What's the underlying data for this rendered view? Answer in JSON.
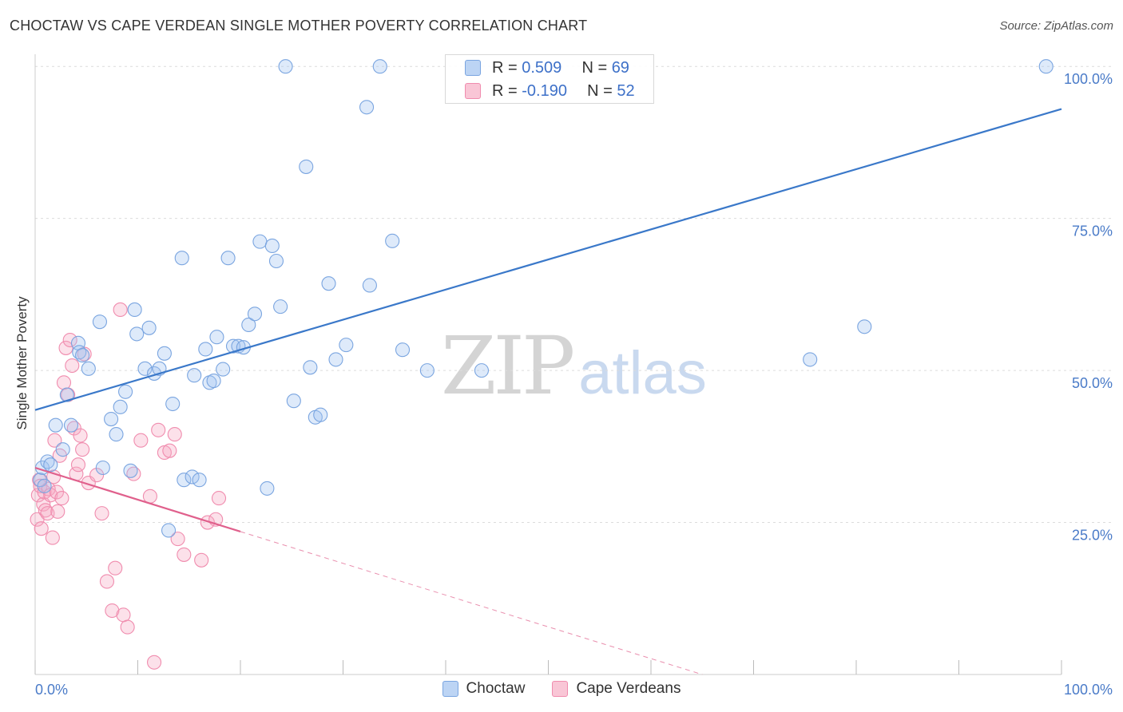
{
  "title": "CHOCTAW VS CAPE VERDEAN SINGLE MOTHER POVERTY CORRELATION CHART",
  "source": "Source: ZipAtlas.com",
  "watermark": {
    "zip": "ZIP",
    "atlas": "atlas"
  },
  "legend": {
    "rows": [
      {
        "r_label": "R =",
        "r_value": "0.509",
        "n_label": "N =",
        "n_value": "69"
      },
      {
        "r_label": "R =",
        "r_value": "-0.190",
        "n_label": "N =",
        "n_value": "52"
      }
    ]
  },
  "chart_data": {
    "type": "scatter",
    "title": "CHOCTAW VS CAPE VERDEAN SINGLE MOTHER POVERTY CORRELATION CHART",
    "xlabel": "",
    "ylabel": "Single Mother Poverty",
    "xlim": [
      0,
      100
    ],
    "ylim": [
      0,
      102
    ],
    "x_tick_labels": [
      "0.0%",
      "100.0%"
    ],
    "y_ticks": [
      25,
      50,
      75,
      100
    ],
    "y_tick_labels": [
      "25.0%",
      "50.0%",
      "75.0%",
      "100.0%"
    ],
    "grid": true,
    "legend_position": "bottom",
    "colors": {
      "choctaw": "#7aa5e0",
      "choctaw_line": "#3a78c9",
      "cape": "#f08cae",
      "cape_line": "#e0608c"
    },
    "series": [
      {
        "name": "Choctaw",
        "r": 0.509,
        "n": 69,
        "trend": {
          "x": [
            0,
            100
          ],
          "y": [
            43.5,
            93.0
          ]
        },
        "points": [
          [
            0.5,
            32
          ],
          [
            0.7,
            34
          ],
          [
            0.9,
            31
          ],
          [
            1.2,
            35
          ],
          [
            1.5,
            34.5
          ],
          [
            2.0,
            41
          ],
          [
            2.7,
            37
          ],
          [
            3.1,
            46
          ],
          [
            3.5,
            41
          ],
          [
            4.2,
            54.5
          ],
          [
            4.3,
            53
          ],
          [
            5.2,
            50.3
          ],
          [
            4.6,
            52.5
          ],
          [
            6.3,
            58
          ],
          [
            6.6,
            34
          ],
          [
            7.4,
            42
          ],
          [
            7.9,
            39.5
          ],
          [
            8.3,
            44
          ],
          [
            8.8,
            46.5
          ],
          [
            9.3,
            33.5
          ],
          [
            9.7,
            60
          ],
          [
            9.9,
            56
          ],
          [
            10.7,
            50.3
          ],
          [
            11.1,
            57
          ],
          [
            11.6,
            49.5
          ],
          [
            12.1,
            50.3
          ],
          [
            12.6,
            52.8
          ],
          [
            13.0,
            23.7
          ],
          [
            13.4,
            44.5
          ],
          [
            14.3,
            68.5
          ],
          [
            14.5,
            32
          ],
          [
            15.3,
            32.5
          ],
          [
            15.5,
            49.2
          ],
          [
            16.0,
            32
          ],
          [
            16.6,
            53.5
          ],
          [
            17.0,
            48
          ],
          [
            17.4,
            48.3
          ],
          [
            17.7,
            55.5
          ],
          [
            18.3,
            50.2
          ],
          [
            18.8,
            68.5
          ],
          [
            19.3,
            54
          ],
          [
            19.8,
            54
          ],
          [
            20.3,
            53.8
          ],
          [
            20.8,
            57.5
          ],
          [
            21.4,
            59.3
          ],
          [
            21.9,
            71.2
          ],
          [
            22.6,
            30.6
          ],
          [
            23.1,
            70.5
          ],
          [
            23.5,
            68
          ],
          [
            23.9,
            60.5
          ],
          [
            24.4,
            100
          ],
          [
            25.2,
            45
          ],
          [
            26.4,
            83.5
          ],
          [
            26.8,
            50.5
          ],
          [
            27.3,
            42.3
          ],
          [
            27.8,
            42.7
          ],
          [
            28.6,
            64.3
          ],
          [
            29.3,
            51.8
          ],
          [
            30.3,
            54.2
          ],
          [
            32.3,
            93.3
          ],
          [
            32.6,
            64
          ],
          [
            33.6,
            100
          ],
          [
            34.8,
            71.3
          ],
          [
            35.8,
            53.4
          ],
          [
            38.2,
            50
          ],
          [
            43.5,
            50
          ],
          [
            75.5,
            51.8
          ],
          [
            80.8,
            57.2
          ],
          [
            98.5,
            100
          ]
        ]
      },
      {
        "name": "Cape Verdeans",
        "r": -0.19,
        "n": 52,
        "trend": {
          "x": [
            0,
            20
          ],
          "y": [
            34.0,
            23.5
          ]
        },
        "trend_extension": {
          "x": [
            20,
            65
          ],
          "y": [
            23.5,
            0
          ]
        },
        "points": [
          [
            0.2,
            25.5
          ],
          [
            0.3,
            29.5
          ],
          [
            0.4,
            32
          ],
          [
            0.5,
            31
          ],
          [
            0.6,
            24
          ],
          [
            0.8,
            28
          ],
          [
            0.9,
            30
          ],
          [
            1.0,
            27
          ],
          [
            1.2,
            26.5
          ],
          [
            1.3,
            30.5
          ],
          [
            1.5,
            29.5
          ],
          [
            1.7,
            22.5
          ],
          [
            1.8,
            32.5
          ],
          [
            1.9,
            38.5
          ],
          [
            2.1,
            30
          ],
          [
            2.2,
            26.8
          ],
          [
            2.4,
            36
          ],
          [
            2.6,
            29
          ],
          [
            2.8,
            48
          ],
          [
            3.0,
            53.7
          ],
          [
            3.2,
            46
          ],
          [
            3.4,
            55
          ],
          [
            3.6,
            50.8
          ],
          [
            3.8,
            40.5
          ],
          [
            4.0,
            33
          ],
          [
            4.2,
            34.5
          ],
          [
            4.4,
            39.3
          ],
          [
            4.6,
            37
          ],
          [
            4.8,
            52.7
          ],
          [
            5.2,
            31.5
          ],
          [
            6.0,
            32.8
          ],
          [
            6.5,
            26.5
          ],
          [
            7.0,
            15.3
          ],
          [
            7.5,
            10.5
          ],
          [
            7.8,
            17.5
          ],
          [
            8.3,
            60
          ],
          [
            8.6,
            9.8
          ],
          [
            9.0,
            7.8
          ],
          [
            9.6,
            33
          ],
          [
            10.3,
            38.5
          ],
          [
            11.2,
            29.3
          ],
          [
            11.6,
            2
          ],
          [
            12.0,
            40.2
          ],
          [
            12.6,
            36.5
          ],
          [
            13.1,
            36.8
          ],
          [
            13.6,
            39.5
          ],
          [
            13.9,
            22.3
          ],
          [
            14.5,
            19.7
          ],
          [
            16.2,
            18.8
          ],
          [
            16.8,
            25
          ],
          [
            17.6,
            25.5
          ],
          [
            17.9,
            29
          ]
        ]
      }
    ]
  }
}
